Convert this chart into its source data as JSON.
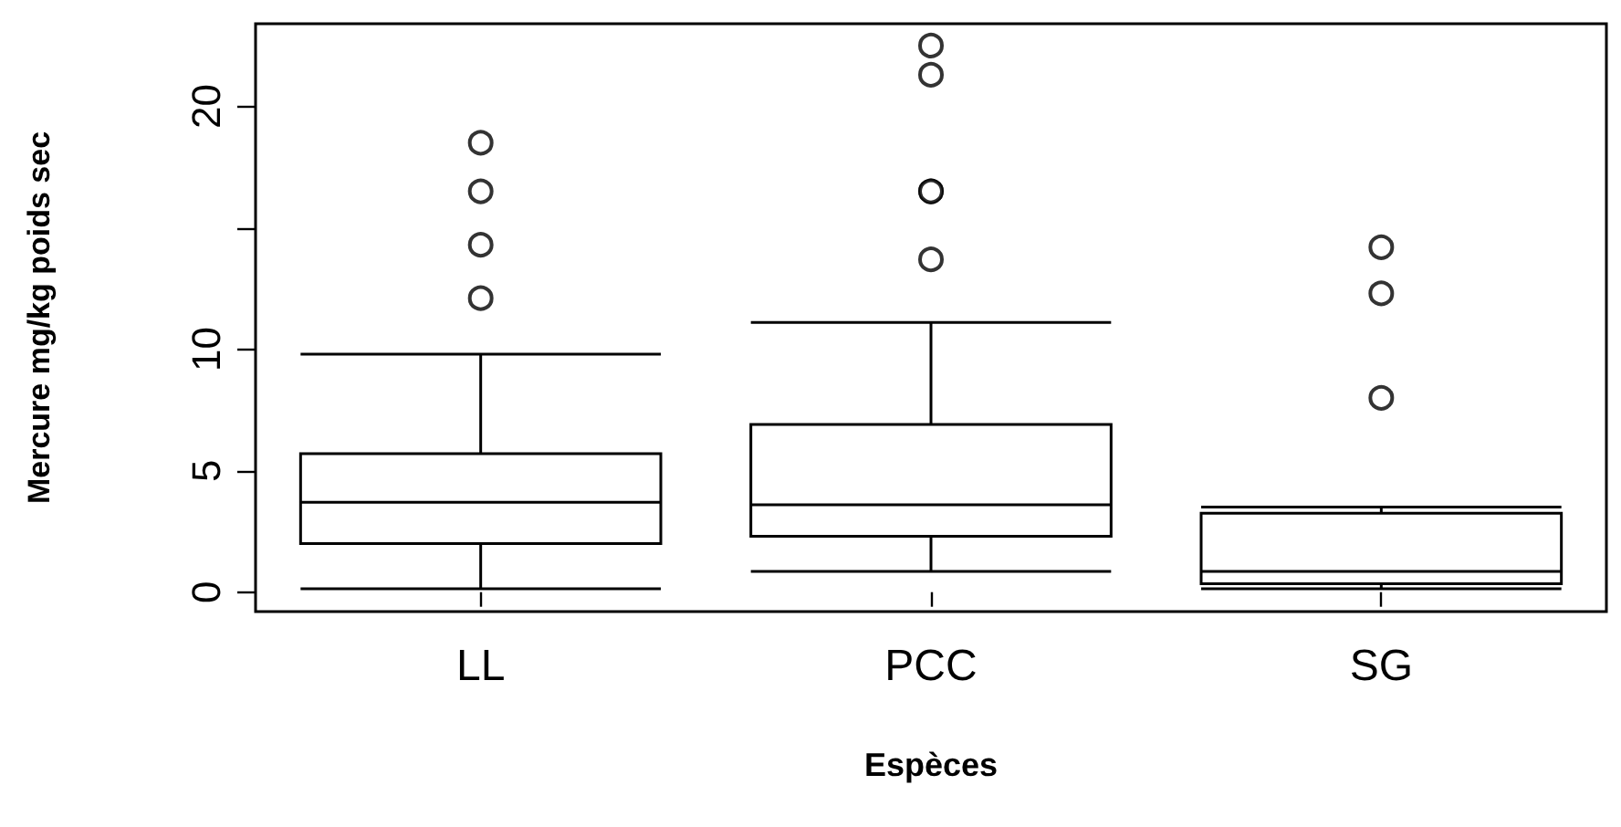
{
  "chart_data": {
    "type": "box",
    "xlabel": "Espèces",
    "ylabel": "Mercure mg/kg poids sec",
    "categories": [
      "LL",
      "PCC",
      "SG"
    ],
    "color": "#000000",
    "boxes": [
      {
        "low": 0.14,
        "q1": 2.0,
        "median": 3.7,
        "q3": 5.7,
        "high": 9.8,
        "outliers": [
          12.1,
          14.3,
          16.5,
          18.5
        ]
      },
      {
        "low": 0.85,
        "q1": 2.3,
        "median": 3.6,
        "q3": 6.9,
        "high": 11.1,
        "outliers": [
          13.7,
          16.5,
          16.5,
          21.3,
          22.5
        ]
      },
      {
        "low": 0.14,
        "q1": 0.35,
        "median": 0.85,
        "q3": 3.25,
        "high": 3.5,
        "outliers": [
          8.0,
          12.3,
          14.2
        ]
      }
    ],
    "ylim": [
      -0.8,
      23.4
    ],
    "yticks": [
      0,
      5,
      10,
      {
        "value": 15,
        "label": null
      },
      20
    ],
    "grid": false,
    "marker": "circle"
  }
}
